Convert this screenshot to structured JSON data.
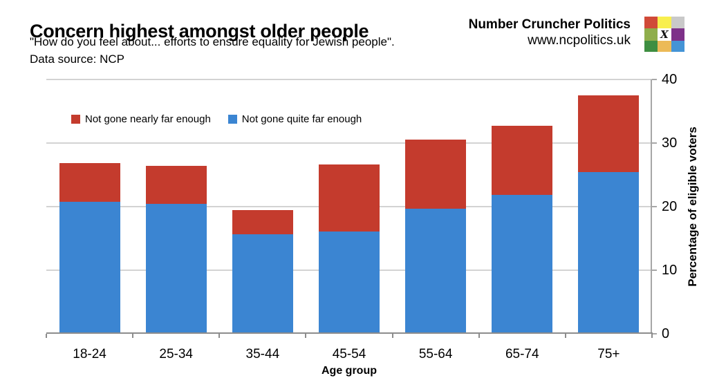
{
  "header": {
    "title": "Concern highest amongst older people",
    "subtitle": "\"How do you feel about... efforts to ensure equality for Jewish people\".",
    "data_source": "Data source: NCP"
  },
  "branding": {
    "name": "Number Cruncher Politics",
    "url": "www.ncpolitics.uk",
    "logo_center_glyph": "X",
    "logo_grid_colors": [
      [
        "#d04a38",
        "#f8ef4e",
        "#c9c9c9"
      ],
      [
        "#8fae4b",
        "#ffffff",
        "#7e3189"
      ],
      [
        "#3e8e41",
        "#ecba57",
        "#4494d6"
      ]
    ]
  },
  "chart_data": {
    "type": "bar",
    "stacked": true,
    "title": "Concern highest amongst older people",
    "categories": [
      "18-24",
      "25-34",
      "35-44",
      "45-54",
      "55-64",
      "65-74",
      "75+"
    ],
    "series": [
      {
        "name": "Not gone quite far enough",
        "color": "#3b85d2",
        "values": [
          20.8,
          20.4,
          15.6,
          16.1,
          19.7,
          21.8,
          25.4
        ]
      },
      {
        "name": "Not gone nearly far enough",
        "color": "#c43b2d",
        "values": [
          6.0,
          6.0,
          3.9,
          10.5,
          10.8,
          10.9,
          12.1
        ]
      }
    ],
    "stack_totals": [
      26.8,
      26.4,
      19.5,
      26.6,
      30.5,
      32.7,
      37.5
    ],
    "xlabel": "Age group",
    "ylabel": "Percentage of eligible voters",
    "ylim": [
      0,
      40
    ],
    "yticks": [
      0,
      10,
      20,
      30,
      40
    ],
    "grid": true,
    "y_axis_side": "right",
    "legend_position": "inside-top-left",
    "legend_items": [
      {
        "label": "Not gone nearly far enough",
        "color": "#c43b2d"
      },
      {
        "label": "Not gone quite far enough",
        "color": "#3b85d2"
      }
    ]
  }
}
